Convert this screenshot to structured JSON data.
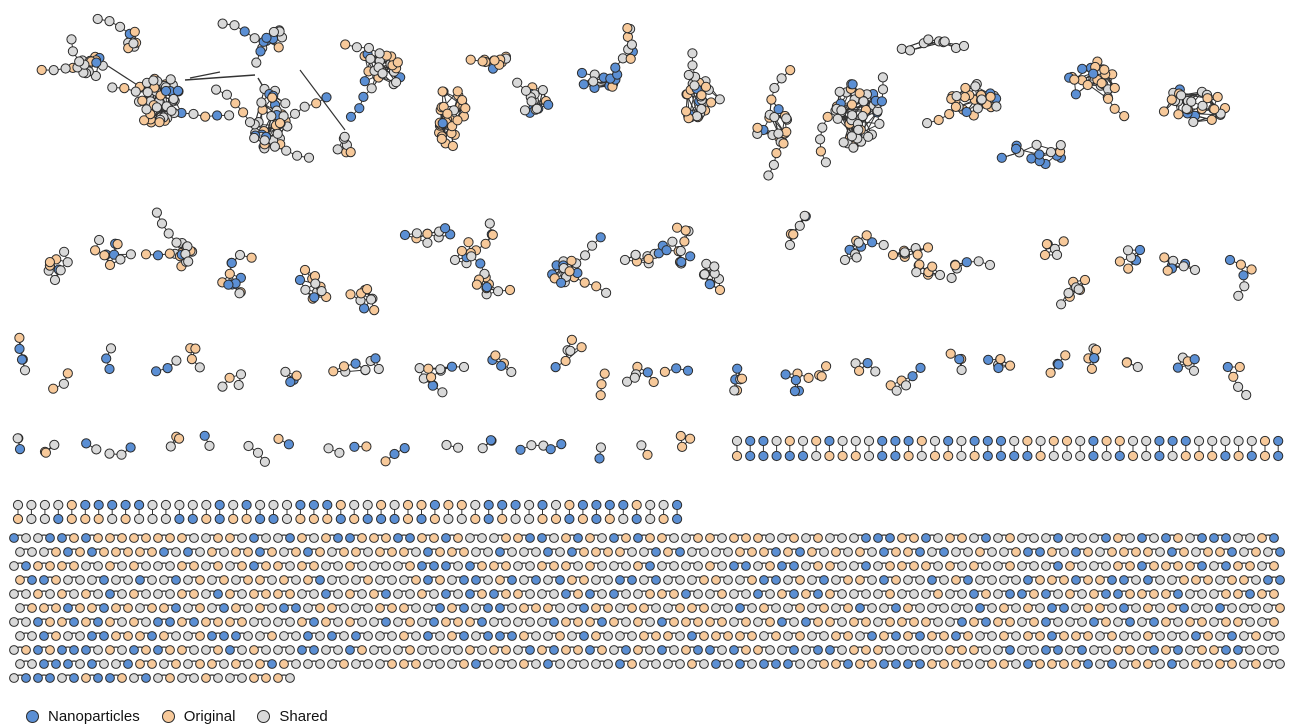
{
  "legend": {
    "items": [
      {
        "key": "nano",
        "label": "Nanoparticles"
      },
      {
        "key": "orig",
        "label": "Original"
      },
      {
        "key": "shared",
        "label": "Shared"
      }
    ]
  },
  "colors": {
    "nano": "#5b8fd4",
    "orig": "#f7c99a",
    "shared": "#d9d9d9",
    "stroke": "#2b2b2b",
    "edge": "#333333"
  }
}
